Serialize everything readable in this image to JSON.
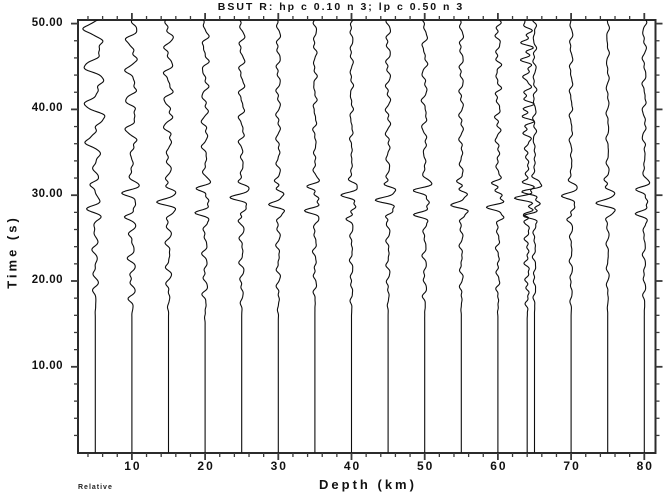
{
  "figure": {
    "title": "BSUT R: hp c 0.10 n 3; lp c 0.50 n 3",
    "footnote": "Relative"
  },
  "colors": {
    "background": "#ffffff",
    "frame": "#2b2b2b",
    "ticks": "#3a3a3a",
    "trace_ink": "#0d0d0d",
    "text_ink": "#111111"
  },
  "chart_data": {
    "type": "line",
    "subtype": "seismic_record_section",
    "title": "BSUT R: hp c 0.10 n 3; lp c 0.50 n 3",
    "xlabel": "Depth (km)",
    "ylabel": "Time (s)",
    "amplitude_scaling": "Relative",
    "xlim": [
      2.6,
      81.5
    ],
    "ylim": [
      0,
      50.4
    ],
    "x_major_ticks": [
      10,
      20,
      30,
      40,
      50,
      60,
      70,
      80
    ],
    "x_major_labels": [
      "10",
      "20",
      "30",
      "40",
      "50",
      "60",
      "70",
      "80"
    ],
    "x_minor_step": 2,
    "y_major_ticks": [
      50,
      40,
      30,
      20,
      10
    ],
    "y_major_labels": [
      "50.00",
      "40.00",
      "30.00",
      "20.00",
      "10.00"
    ],
    "y_minor_step": 2,
    "grid": false,
    "n_traces": 17,
    "trace_depths_km": [
      5,
      10,
      15,
      20,
      25,
      30,
      35,
      40,
      45,
      50,
      55,
      60,
      64,
      65,
      70,
      75,
      80
    ],
    "first_motion_onset_s": 15.5,
    "main_arrival_time_s": 28.8,
    "traces": [
      {
        "depth": 5,
        "onset": 15.5,
        "mid_amp": 3.5,
        "main_amp": 9,
        "coda_amp": 12.5,
        "coda_period": 4.3,
        "hf": 0.06,
        "phase": 0.13
      },
      {
        "depth": 10,
        "onset": 15.0,
        "mid_amp": 4.8,
        "main_amp": 11,
        "coda_amp": 7.5,
        "coda_period": 3.4,
        "hf": 0.1,
        "phase": 0.47
      },
      {
        "depth": 15,
        "onset": 15.5,
        "mid_amp": 3.8,
        "main_amp": 12,
        "coda_amp": 6.0,
        "coda_period": 3.0,
        "hf": 0.12,
        "phase": 0.82
      },
      {
        "depth": 20,
        "onset": 14.5,
        "mid_amp": 3.5,
        "main_amp": 11,
        "coda_amp": 4.5,
        "coda_period": 2.9,
        "hf": 0.15,
        "phase": 0.29
      },
      {
        "depth": 25,
        "onset": 15.5,
        "mid_amp": 3.2,
        "main_amp": 12,
        "coda_amp": 4.0,
        "coda_period": 2.8,
        "hf": 0.15,
        "phase": 0.64
      },
      {
        "depth": 30,
        "onset": 15.0,
        "mid_amp": 2.8,
        "main_amp": 10,
        "coda_amp": 3.0,
        "coda_period": 2.7,
        "hf": 0.18,
        "phase": 0.91
      },
      {
        "depth": 35,
        "onset": 15.8,
        "mid_amp": 2.5,
        "main_amp": 11,
        "coda_amp": 1.8,
        "coda_period": 2.6,
        "hf": 0.2,
        "phase": 0.21
      },
      {
        "depth": 40,
        "onset": 15.2,
        "mid_amp": 2.2,
        "main_amp": 11,
        "coda_amp": 2.2,
        "coda_period": 2.6,
        "hf": 0.2,
        "phase": 0.55
      },
      {
        "depth": 45,
        "onset": 15.6,
        "mid_amp": 2.6,
        "main_amp": 13,
        "coda_amp": 3.4,
        "coda_period": 2.7,
        "hf": 0.18,
        "phase": 0.74
      },
      {
        "depth": 50,
        "onset": 15.0,
        "mid_amp": 2.8,
        "main_amp": 13,
        "coda_amp": 3.6,
        "coda_period": 3.1,
        "hf": 0.15,
        "phase": 0.37
      },
      {
        "depth": 55,
        "onset": 15.4,
        "mid_amp": 2.4,
        "main_amp": 11,
        "coda_amp": 3.0,
        "coda_period": 2.7,
        "hf": 0.2,
        "phase": 0.93
      },
      {
        "depth": 60,
        "onset": 15.2,
        "mid_amp": 2.6,
        "main_amp": 12,
        "coda_amp": 4.0,
        "coda_period": 2.5,
        "hf": 0.25,
        "phase": 0.08
      },
      {
        "depth": 64,
        "onset": 15.0,
        "mid_amp": 3.5,
        "main_amp": 13,
        "coda_amp": 7.5,
        "coda_period": 2.1,
        "hf": 0.32,
        "phase": 0.66
      },
      {
        "depth": 65,
        "onset": 15.5,
        "mid_amp": 2.2,
        "main_amp": 14,
        "coda_amp": 2.4,
        "coda_period": 2.4,
        "hf": 0.22,
        "phase": 0.42
      },
      {
        "depth": 70,
        "onset": 15.3,
        "mid_amp": 2.0,
        "main_amp": 10,
        "coda_amp": 2.2,
        "coda_period": 2.8,
        "hf": 0.15,
        "phase": 0.58
      },
      {
        "depth": 75,
        "onset": 15.5,
        "mid_amp": 1.8,
        "main_amp": 12,
        "coda_amp": 1.8,
        "coda_period": 2.9,
        "hf": 0.12,
        "phase": 0.86
      },
      {
        "depth": 80,
        "onset": 15.2,
        "mid_amp": 2.0,
        "main_amp": 10,
        "coda_amp": 2.6,
        "coda_period": 3.0,
        "hf": 0.14,
        "phase": 0.33
      }
    ]
  }
}
